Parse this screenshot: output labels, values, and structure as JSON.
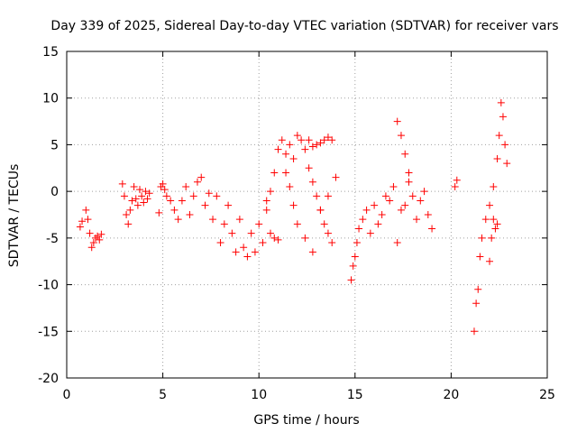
{
  "chart_data": {
    "type": "scatter",
    "title": "Day 339 of 2025, Sidereal Day-to-day VTEC variation (SDTVAR) for receiver vars",
    "xlabel": "GPS time / hours",
    "ylabel": "SDTVAR / TECUs",
    "xlim": [
      0,
      25
    ],
    "ylim": [
      -20,
      15
    ],
    "xticks": [
      "0",
      "5",
      "10",
      "15",
      "20",
      "25"
    ],
    "yticks": [
      "15",
      "10",
      "5",
      "0",
      "-5",
      "-10",
      "-15",
      "-20"
    ],
    "grid": true,
    "marker": "+",
    "color": "#ff0000",
    "series": [
      {
        "name": "SDTVAR",
        "x": [
          0.7,
          0.8,
          1.0,
          1.1,
          1.2,
          1.3,
          1.4,
          1.5,
          1.6,
          1.7,
          1.8,
          2.9,
          3.0,
          3.1,
          3.2,
          3.3,
          3.4,
          3.5,
          3.6,
          3.7,
          3.8,
          3.9,
          4.0,
          4.1,
          4.2,
          4.3,
          4.8,
          4.9,
          5.0,
          5.1,
          5.2,
          5.4,
          5.6,
          5.8,
          6.0,
          6.2,
          6.4,
          6.6,
          6.8,
          7.0,
          7.2,
          7.4,
          7.6,
          7.8,
          8.0,
          8.2,
          8.4,
          8.6,
          8.8,
          9.0,
          9.2,
          9.4,
          9.6,
          9.8,
          10.0,
          10.2,
          10.4,
          10.6,
          10.8,
          11.0,
          10.4,
          10.6,
          10.8,
          11.0,
          11.2,
          11.4,
          11.6,
          11.8,
          12.0,
          12.2,
          12.4,
          12.6,
          12.8,
          13.0,
          13.2,
          13.4,
          13.6,
          13.8,
          11.4,
          11.6,
          11.8,
          12.0,
          12.4,
          12.8,
          13.2,
          13.6,
          14.0,
          12.6,
          12.8,
          13.0,
          13.2,
          13.4,
          13.6,
          13.8,
          14.8,
          14.9,
          15.0,
          15.1,
          15.2,
          15.4,
          15.6,
          15.8,
          16.0,
          16.2,
          16.4,
          16.6,
          16.8,
          17.0,
          17.2,
          17.4,
          17.6,
          17.8,
          18.0,
          17.2,
          17.4,
          17.6,
          17.8,
          18.2,
          18.4,
          18.6,
          18.8,
          19.0,
          20.2,
          20.3,
          21.2,
          21.3,
          21.4,
          21.5,
          21.6,
          21.8,
          22.0,
          22.2,
          22.4,
          22.5,
          22.6,
          22.7,
          22.8,
          22.9,
          22.0,
          22.1,
          22.2,
          22.3,
          22.4
        ],
        "y": [
          -3.8,
          -3.2,
          -2.0,
          -3.0,
          -4.5,
          -6.0,
          -5.5,
          -5.0,
          -4.8,
          -5.2,
          -4.6,
          0.8,
          -0.5,
          -2.5,
          -3.5,
          -2.0,
          -1.0,
          0.5,
          -0.8,
          -1.5,
          0.2,
          -0.5,
          -1.2,
          0.0,
          -0.8,
          -0.2,
          -2.3,
          0.5,
          0.8,
          0.2,
          -0.5,
          -1.0,
          -2.0,
          -3.0,
          -1.0,
          0.5,
          -2.5,
          -0.5,
          1.0,
          1.5,
          -1.5,
          -0.2,
          -3.0,
          -0.5,
          -5.5,
          -3.5,
          -1.5,
          -4.5,
          -6.5,
          -3.0,
          -6.0,
          -7.0,
          -4.5,
          -6.5,
          -3.5,
          -5.5,
          -2.0,
          -4.5,
          -5.0,
          -5.2,
          -1.0,
          0.0,
          2.0,
          4.5,
          5.5,
          4.0,
          5.0,
          3.5,
          6.0,
          5.5,
          4.5,
          5.5,
          4.8,
          5.0,
          5.2,
          5.5,
          5.8,
          5.5,
          2.0,
          0.5,
          -1.5,
          -3.5,
          -5.0,
          -6.5,
          -2.0,
          -0.5,
          1.5,
          2.5,
          1.0,
          -0.5,
          -2.0,
          -3.5,
          -4.5,
          -5.5,
          -9.5,
          -8.0,
          -7.0,
          -5.5,
          -4.0,
          -3.0,
          -2.0,
          -4.5,
          -1.5,
          -3.5,
          -2.5,
          -0.5,
          -1.0,
          0.5,
          -5.5,
          -2.0,
          -1.5,
          1.0,
          -0.5,
          7.5,
          6.0,
          4.0,
          2.0,
          -3.0,
          -1.0,
          0.0,
          -2.5,
          -4.0,
          0.5,
          1.2,
          -15.0,
          -12.0,
          -10.5,
          -7.0,
          -5.0,
          -3.0,
          -1.5,
          0.5,
          3.5,
          6.0,
          9.5,
          8.0,
          5.0,
          3.0,
          -7.5,
          -5.0,
          -3.0,
          -4.0,
          -3.5
        ]
      }
    ]
  }
}
